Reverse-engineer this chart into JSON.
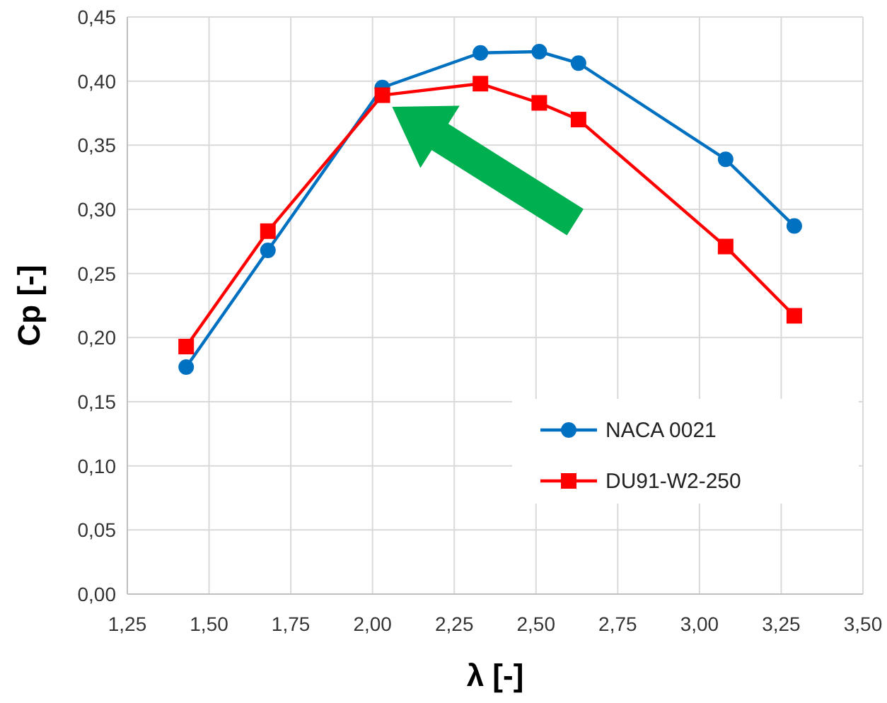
{
  "chart_data": {
    "type": "line",
    "xlabel": "λ [-]",
    "ylabel": "Cp [-]",
    "xlim": [
      1.25,
      3.5
    ],
    "xticks": [
      {
        "value": 1.25,
        "label": "1,25"
      },
      {
        "value": 1.5,
        "label": "1,50"
      },
      {
        "value": 1.75,
        "label": "1,75"
      },
      {
        "value": 2,
        "label": "2,00"
      },
      {
        "value": 2.25,
        "label": "2,25"
      },
      {
        "value": 2.5,
        "label": "2,50"
      },
      {
        "value": 2.75,
        "label": "2,75"
      },
      {
        "value": 3,
        "label": "3,00"
      },
      {
        "value": 3.25,
        "label": "3,25"
      },
      {
        "value": 3.5,
        "label": "3,50"
      }
    ],
    "ylim": [
      0,
      0.45
    ],
    "yticks": [
      {
        "value": 0,
        "label": "0,00"
      },
      {
        "value": 0.05,
        "label": "0,05"
      },
      {
        "value": 0.1,
        "label": "0,10"
      },
      {
        "value": 0.15,
        "label": "0,15"
      },
      {
        "value": 0.2,
        "label": "0,20"
      },
      {
        "value": 0.25,
        "label": "0,25"
      },
      {
        "value": 0.3,
        "label": "0,30"
      },
      {
        "value": 0.35,
        "label": "0,35"
      },
      {
        "value": 0.4,
        "label": "0,40"
      },
      {
        "value": 0.45,
        "label": "0,45"
      }
    ],
    "x": [
      1.43,
      1.68,
      2.03,
      2.33,
      2.51,
      2.63,
      3.08,
      3.29
    ],
    "series": [
      {
        "name": "NACA 0021",
        "color": "#0070c0",
        "marker": "circle",
        "values": [
          0.177,
          0.268,
          0.395,
          0.422,
          0.423,
          0.414,
          0.339,
          0.287
        ]
      },
      {
        "name": "DU91-W2-250",
        "color": "#ff0000",
        "marker": "square",
        "values": [
          0.193,
          0.283,
          0.389,
          0.398,
          0.383,
          0.37,
          0.271,
          0.217
        ]
      }
    ],
    "grid": true,
    "legend": "bottom right"
  }
}
